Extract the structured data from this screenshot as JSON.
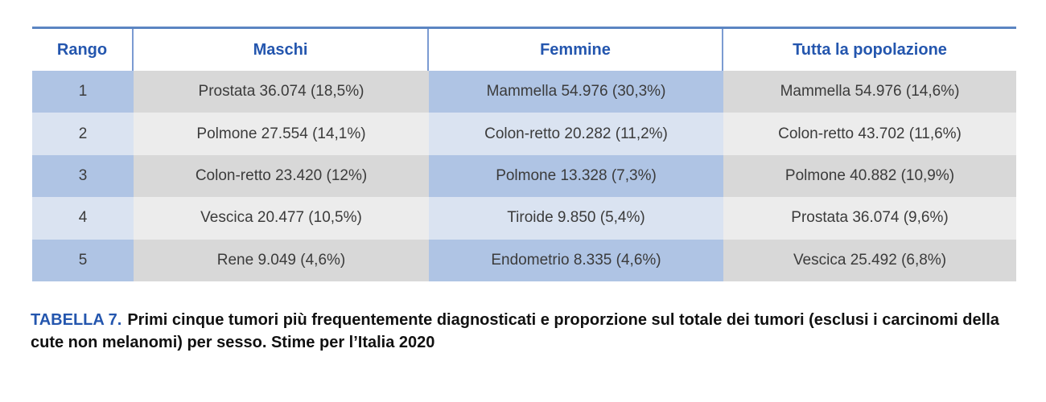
{
  "table": {
    "columns": [
      "Rango",
      "Maschi",
      "Femmine",
      "Tutta la popolazione"
    ],
    "rows": [
      {
        "rank": "1",
        "maschi": "Prostata 36.074 (18,5%)",
        "femmine": "Mammella 54.976 (30,3%)",
        "tutta": "Mammella 54.976 (14,6%)"
      },
      {
        "rank": "2",
        "maschi": "Polmone 27.554 (14,1%)",
        "femmine": "Colon-retto 20.282 (11,2%)",
        "tutta": "Colon-retto 43.702 (11,6%)"
      },
      {
        "rank": "3",
        "maschi": "Colon-retto 23.420 (12%)",
        "femmine": "Polmone 13.328 (7,3%)",
        "tutta": "Polmone 40.882 (10,9%)"
      },
      {
        "rank": "4",
        "maschi": "Vescica 20.477 (10,5%)",
        "femmine": "Tiroide 9.850 (5,4%)",
        "tutta": "Prostata 36.074 (9,6%)"
      },
      {
        "rank": "5",
        "maschi": "Rene 9.049 (4,6%)",
        "femmine": "Endometrio 8.335 (4,6%)",
        "tutta": "Vescica 25.492 (6,8%)"
      }
    ]
  },
  "caption": {
    "label": "TABELLA 7.",
    "text": "Primi cinque tumori più frequentemente diagnosticati e proporzione sul totale dei tumori (esclusi i carcinomi della cute non melanomi) per sesso. Stime per l’Italia 2020"
  },
  "colors": {
    "header_text": "#2456ae",
    "top_border": "#5b85c2",
    "header_separator": "#7b9bd2",
    "blue_dark": "#afc4e4",
    "blue_light": "#dae3f1",
    "gray_dark": "#d8d8d8",
    "gray_light": "#ececec",
    "body_text": "#3b3b3b",
    "caption_text": "#111111"
  }
}
